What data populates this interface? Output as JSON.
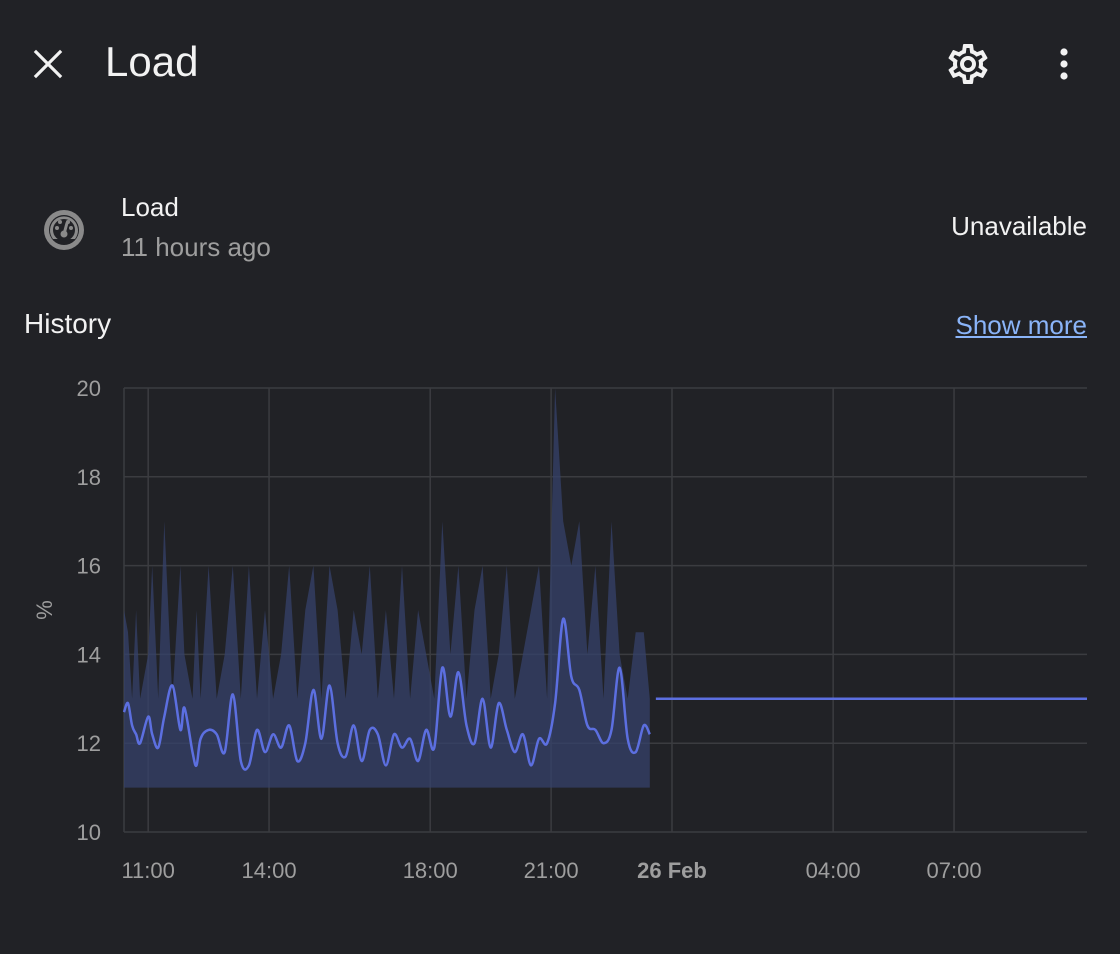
{
  "header": {
    "title": "Load",
    "close_icon": "close-icon",
    "settings_icon": "gear-icon",
    "menu_icon": "more-vertical-icon"
  },
  "entity": {
    "icon": "gauge-icon",
    "name": "Load",
    "last_changed": "11 hours ago",
    "state": "Unavailable"
  },
  "history": {
    "title": "History",
    "show_more": "Show more"
  },
  "colors": {
    "background": "#212226",
    "line": "#5c6fe0",
    "band": "#36416b",
    "grid": "#3b3c40",
    "link": "#8ab4f8"
  },
  "chart_data": {
    "type": "line",
    "ylabel": "%",
    "ylim": [
      10,
      20
    ],
    "yticks": [
      "10",
      "12",
      "14",
      "16",
      "18",
      "20"
    ],
    "xticks": [
      {
        "hour": 11,
        "label": "11:00",
        "bold": false
      },
      {
        "hour": 14,
        "label": "14:00",
        "bold": false
      },
      {
        "hour": 18,
        "label": "18:00",
        "bold": false
      },
      {
        "hour": 21,
        "label": "21:00",
        "bold": false
      },
      {
        "hour": 24,
        "label": "26 Feb",
        "bold": true
      },
      {
        "hour": 28,
        "label": "04:00",
        "bold": false
      },
      {
        "hour": 31,
        "label": "07:00",
        "bold": false
      }
    ],
    "xlim_hours": [
      10.4,
      34.3
    ],
    "grid": true,
    "series": [
      {
        "name": "mean",
        "x_hours": [
          10.4,
          10.5,
          10.6,
          10.7,
          10.8,
          11.0,
          11.1,
          11.25,
          11.4,
          11.6,
          11.8,
          11.9,
          12.1,
          12.2,
          12.3,
          12.5,
          12.7,
          12.9,
          13.1,
          13.3,
          13.5,
          13.7,
          13.9,
          14.1,
          14.3,
          14.5,
          14.7,
          14.9,
          15.1,
          15.3,
          15.5,
          15.7,
          15.9,
          16.1,
          16.3,
          16.5,
          16.7,
          16.9,
          17.1,
          17.3,
          17.5,
          17.7,
          17.9,
          18.1,
          18.3,
          18.5,
          18.7,
          18.9,
          19.1,
          19.3,
          19.5,
          19.7,
          19.9,
          20.1,
          20.3,
          20.5,
          20.7,
          20.9,
          21.1,
          21.3,
          21.5,
          21.7,
          21.9,
          22.1,
          22.3,
          22.5,
          22.7,
          22.9,
          23.1,
          23.3,
          23.45
        ],
        "mean": [
          12.7,
          12.9,
          12.4,
          12.2,
          12.0,
          12.6,
          12.2,
          11.9,
          12.6,
          13.3,
          12.3,
          12.8,
          11.8,
          11.5,
          12.1,
          12.3,
          12.2,
          11.8,
          13.1,
          11.6,
          11.5,
          12.3,
          11.8,
          12.2,
          11.9,
          12.4,
          11.6,
          12.0,
          13.2,
          12.1,
          13.3,
          12.0,
          11.7,
          12.4,
          11.6,
          12.3,
          12.2,
          11.5,
          12.2,
          11.9,
          12.1,
          11.6,
          12.3,
          11.9,
          13.7,
          12.6,
          13.6,
          12.4,
          12.0,
          13.0,
          11.9,
          12.9,
          12.3,
          11.8,
          12.2,
          11.5,
          12.1,
          12.0,
          12.9,
          14.8,
          13.5,
          13.2,
          12.4,
          12.3,
          12.0,
          12.3,
          13.7,
          12.1,
          11.8,
          12.4,
          12.2
        ],
        "min": [
          11.0,
          11.0,
          11.0,
          11.0,
          11.0,
          11.0,
          11.0,
          11.0,
          11.0,
          11.0,
          11.0,
          11.0,
          11.0,
          11.0,
          11.0,
          11.0,
          11.0,
          11.0,
          11.0,
          11.0,
          11.0,
          11.0,
          11.0,
          11.0,
          11.0,
          11.0,
          11.0,
          11.0,
          11.0,
          11.0,
          11.0,
          11.0,
          11.0,
          11.0,
          11.0,
          11.0,
          11.0,
          11.0,
          11.0,
          11.0,
          11.0,
          11.0,
          11.0,
          11.0,
          11.0,
          11.0,
          11.0,
          11.0,
          11.0,
          11.0,
          11.0,
          11.0,
          11.0,
          11.0,
          11.0,
          11.0,
          11.0,
          11.0,
          11.0,
          11.0,
          11.0,
          11.0,
          11.0,
          11.0,
          11.0,
          11.0,
          11.0,
          11.0,
          11.0,
          11.0,
          11.0
        ],
        "max": [
          15.0,
          14.5,
          13.0,
          15.0,
          13.0,
          14.0,
          16.0,
          13.0,
          17.0,
          13.0,
          16.0,
          14.0,
          13.0,
          15.0,
          13.0,
          16.0,
          13.0,
          14.0,
          16.0,
          13.0,
          16.0,
          13.0,
          15.0,
          13.0,
          14.0,
          16.0,
          13.0,
          15.0,
          16.0,
          13.0,
          16.0,
          15.0,
          13.0,
          15.0,
          14.0,
          16.0,
          13.0,
          15.0,
          13.0,
          16.0,
          13.0,
          15.0,
          14.0,
          13.0,
          17.0,
          14.0,
          16.0,
          13.0,
          15.0,
          16.0,
          13.0,
          14.0,
          16.0,
          13.0,
          14.0,
          15.0,
          16.0,
          13.0,
          20.0,
          17.0,
          16.0,
          17.0,
          14.0,
          16.0,
          13.0,
          17.0,
          14.0,
          13.0,
          14.5,
          14.5,
          13.0
        ]
      },
      {
        "name": "current",
        "x_hours": [
          23.6,
          34.3
        ],
        "values": [
          13.0,
          13.0
        ]
      }
    ]
  }
}
